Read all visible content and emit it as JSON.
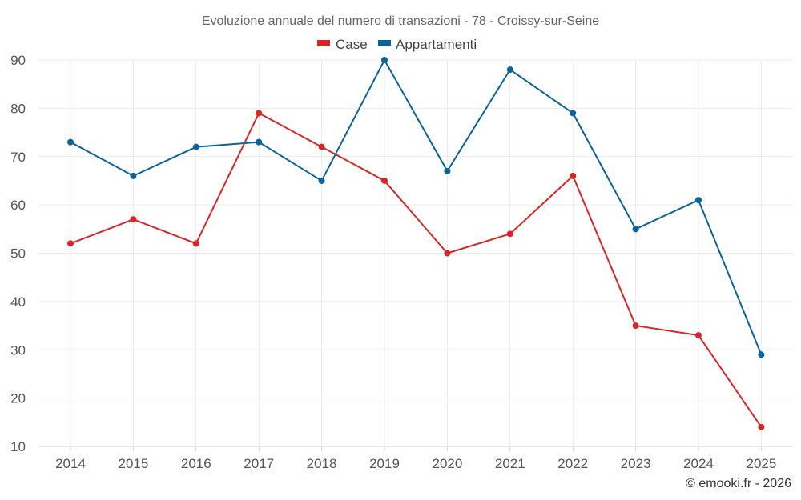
{
  "chart_data": {
    "type": "line",
    "title": "Evoluzione annuale del numero di transazioni - 78 - Croissy-sur-Seine",
    "xlabel": "",
    "ylabel": "",
    "categories": [
      "2014",
      "2015",
      "2016",
      "2017",
      "2018",
      "2019",
      "2020",
      "2021",
      "2022",
      "2023",
      "2024",
      "2025"
    ],
    "series": [
      {
        "name": "Case",
        "color": "#d62728",
        "values": [
          52,
          57,
          52,
          79,
          72,
          65,
          50,
          54,
          66,
          35,
          33,
          14
        ]
      },
      {
        "name": "Appartamenti",
        "color": "#0b6399",
        "values": [
          73,
          66,
          72,
          73,
          65,
          90,
          67,
          88,
          79,
          55,
          61,
          29
        ]
      }
    ],
    "ylim": [
      10,
      90
    ],
    "yticks": [
      10,
      20,
      30,
      40,
      50,
      60,
      70,
      80,
      90
    ],
    "grid": true,
    "legend": "top-center"
  },
  "credit": "© emooki.fr - 2026"
}
